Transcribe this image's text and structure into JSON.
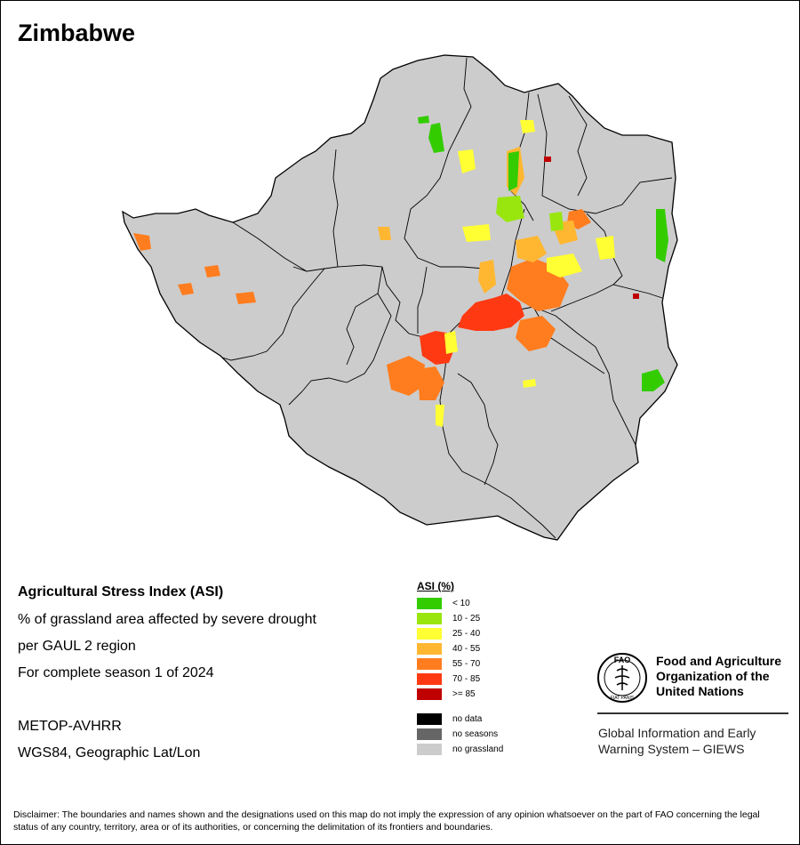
{
  "title": "Zimbabwe",
  "info": {
    "index_name": "Agricultural Stress Index (ASI)",
    "line2": "% of grassland area affected by severe drought",
    "line3": "per GAUL 2 region",
    "line4": "For complete season 1 of 2024",
    "sensor": "METOP-AVHRR",
    "projection": "WGS84, Geographic Lat/Lon"
  },
  "legend": {
    "title": "ASI (%)",
    "classes": [
      {
        "label": "< 10",
        "color": "#33cc00"
      },
      {
        "label": "10 - 25",
        "color": "#99e60f"
      },
      {
        "label": "25 - 40",
        "color": "#ffff33"
      },
      {
        "label": "40 - 55",
        "color": "#ffb732"
      },
      {
        "label": "55 - 70",
        "color": "#ff7d1e"
      },
      {
        "label": "70 - 85",
        "color": "#ff3a12"
      },
      {
        "label": ">= 85",
        "color": "#c00000"
      }
    ],
    "other": [
      {
        "label": "no data",
        "color": "#000000"
      },
      {
        "label": "no seasons",
        "color": "#666666"
      },
      {
        "label": "no grassland",
        "color": "#cccccc"
      }
    ]
  },
  "fao": {
    "logo_text": "FAO",
    "motto": "FIAT PANIS",
    "name_lines": [
      "Food and Agriculture",
      "Organization of the",
      "United Nations"
    ],
    "giews_lines": [
      "Global Information and Early",
      "Warning System – GIEWS"
    ]
  },
  "disclaimer": "Disclaimer: The boundaries and names shown and the designations used on this map do not imply the expression of any opinion whatsoever on the part of FAO concerning the legal status of any country, territory, area or of its authorities, or concerning the delimitation of its frontiers and boundaries."
}
